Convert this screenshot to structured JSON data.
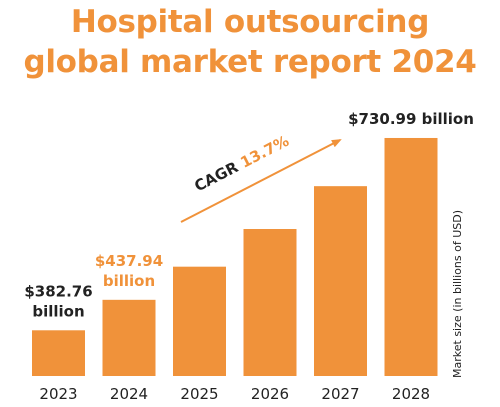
{
  "title_lines": [
    "Hospital outsourcing",
    "global market report 2024"
  ],
  "colors": {
    "accent": "#f0923a",
    "bar": "#f0923a",
    "text_dark": "#222222"
  },
  "chart_data": {
    "type": "bar",
    "title": "Hospital outsourcing global market report 2024",
    "categories": [
      "2023",
      "2024",
      "2025",
      "2026",
      "2027",
      "2028"
    ],
    "values": [
      382.76,
      437.94,
      497.94,
      566.16,
      643.73,
      730.99
    ],
    "ylabel": "Market size (in billions of USD)",
    "ylim": [
      300,
      740
    ],
    "grid": false,
    "legend": "none",
    "data_labels": [
      {
        "category": "2023",
        "lines": [
          "$382.76",
          "billion"
        ],
        "color": "#222222"
      },
      {
        "category": "2024",
        "lines": [
          "$437.94",
          "billion"
        ],
        "color": "#f0923a"
      },
      {
        "category": "2028",
        "lines": [
          "$730.99 billion"
        ],
        "color": "#222222"
      }
    ],
    "annotation": {
      "label": "CAGR",
      "value": "13.7%"
    }
  }
}
